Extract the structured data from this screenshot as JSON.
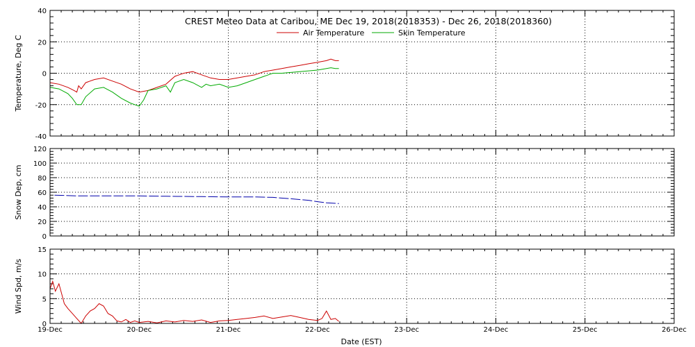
{
  "chart_data": [
    {
      "type": "line",
      "title": "CREST Meteo Data at Caribou, ME   Dec 19, 2018(2018353) - Dec 26, 2018(2018360)",
      "xlabel": "",
      "ylabel": "Temperature, Deg C",
      "ylim": [
        -40,
        40
      ],
      "yticks": [
        -40,
        -20,
        0,
        20,
        40
      ],
      "xlim": [
        0,
        7
      ],
      "grid": true,
      "legend": "top-center",
      "series": [
        {
          "name": "Air Temperature",
          "color": "#cc0000",
          "x": [
            0,
            0.1,
            0.2,
            0.27,
            0.3,
            0.32,
            0.35,
            0.4,
            0.5,
            0.6,
            0.7,
            0.8,
            0.9,
            1.0,
            1.1,
            1.2,
            1.3,
            1.4,
            1.5,
            1.6,
            1.7,
            1.8,
            1.9,
            2.0,
            2.1,
            2.2,
            2.3,
            2.4,
            2.5,
            2.6,
            2.7,
            2.8,
            2.9,
            3.0,
            3.1,
            3.15,
            3.2,
            3.24
          ],
          "y": [
            -6,
            -7,
            -9,
            -11,
            -12,
            -8,
            -10,
            -6,
            -4,
            -3,
            -5,
            -7,
            -10,
            -12,
            -11,
            -9,
            -7,
            -2,
            0,
            1,
            -1,
            -3,
            -4,
            -4,
            -3,
            -2,
            -1,
            1,
            2,
            3,
            4,
            5,
            6,
            7,
            8,
            9,
            8,
            8
          ]
        },
        {
          "name": "Skin Temperature",
          "color": "#00aa00",
          "x": [
            0,
            0.1,
            0.2,
            0.25,
            0.3,
            0.35,
            0.4,
            0.5,
            0.6,
            0.7,
            0.8,
            0.9,
            0.95,
            1.0,
            1.05,
            1.1,
            1.2,
            1.3,
            1.35,
            1.4,
            1.5,
            1.6,
            1.7,
            1.75,
            1.8,
            1.9,
            2.0,
            2.1,
            2.2,
            2.3,
            2.4,
            2.5,
            2.6,
            2.7,
            2.8,
            2.9,
            3.0,
            3.1,
            3.15,
            3.2,
            3.24
          ],
          "y": [
            -9,
            -10,
            -13,
            -16,
            -20,
            -20,
            -15,
            -10,
            -9,
            -12,
            -16,
            -19,
            -20,
            -21,
            -17,
            -11,
            -10,
            -8,
            -12,
            -6,
            -4,
            -6,
            -9,
            -7,
            -8,
            -7,
            -9,
            -8,
            -6,
            -4,
            -2,
            0,
            0,
            0.5,
            1,
            1.5,
            2,
            3,
            3.5,
            3,
            3
          ]
        }
      ]
    },
    {
      "type": "line",
      "ylabel": "Snow Dep, cm",
      "ylim": [
        0,
        120
      ],
      "yticks": [
        0,
        20,
        40,
        60,
        80,
        100,
        120
      ],
      "xlim": [
        0,
        7
      ],
      "grid": true,
      "series": [
        {
          "name": "",
          "color": "#0000aa",
          "x": [
            0.05,
            0.3,
            0.6,
            1.0,
            1.3,
            1.7,
            2.0,
            2.3,
            2.5,
            2.7,
            2.9,
            3.0,
            3.1,
            3.24
          ],
          "y": [
            56,
            55,
            55,
            55,
            54.5,
            54,
            53.5,
            53.5,
            53,
            51,
            49,
            47,
            45.5,
            44.5
          ]
        }
      ]
    },
    {
      "type": "line",
      "ylabel": "Wind Spd, m/s",
      "ylim": [
        0,
        15
      ],
      "yticks": [
        0,
        5,
        10,
        15
      ],
      "xlim": [
        0,
        7
      ],
      "xlabel": "Date (EST)",
      "xticks": [
        "19-Dec",
        "20-Dec",
        "21-Dec",
        "22-Dec",
        "23-Dec",
        "24-Dec",
        "25-Dec",
        "26-Dec"
      ],
      "grid": true,
      "series": [
        {
          "name": "",
          "color": "#cc0000",
          "x": [
            0,
            0.03,
            0.06,
            0.1,
            0.13,
            0.16,
            0.2,
            0.25,
            0.3,
            0.35,
            0.4,
            0.45,
            0.5,
            0.55,
            0.6,
            0.65,
            0.7,
            0.75,
            0.8,
            0.85,
            0.9,
            0.95,
            1.0,
            1.1,
            1.2,
            1.3,
            1.4,
            1.5,
            1.6,
            1.7,
            1.8,
            1.9,
            2.0,
            2.1,
            2.2,
            2.3,
            2.4,
            2.5,
            2.6,
            2.7,
            2.8,
            2.9,
            3.0,
            3.05,
            3.1,
            3.15,
            3.2,
            3.24
          ],
          "y": [
            7,
            8.5,
            6.5,
            8,
            6,
            4,
            3,
            2,
            1,
            0,
            1.5,
            2.5,
            3,
            4,
            3.5,
            2,
            1.5,
            0.5,
            0.3,
            0.8,
            0.2,
            0.5,
            0.2,
            0.4,
            0.1,
            0.5,
            0.3,
            0.6,
            0.4,
            0.7,
            0.2,
            0.5,
            0.6,
            0.8,
            1,
            1.2,
            1.5,
            1,
            1.3,
            1.6,
            1.2,
            0.8,
            0.6,
            1,
            2.5,
            0.8,
            1,
            0.4
          ]
        }
      ]
    }
  ]
}
